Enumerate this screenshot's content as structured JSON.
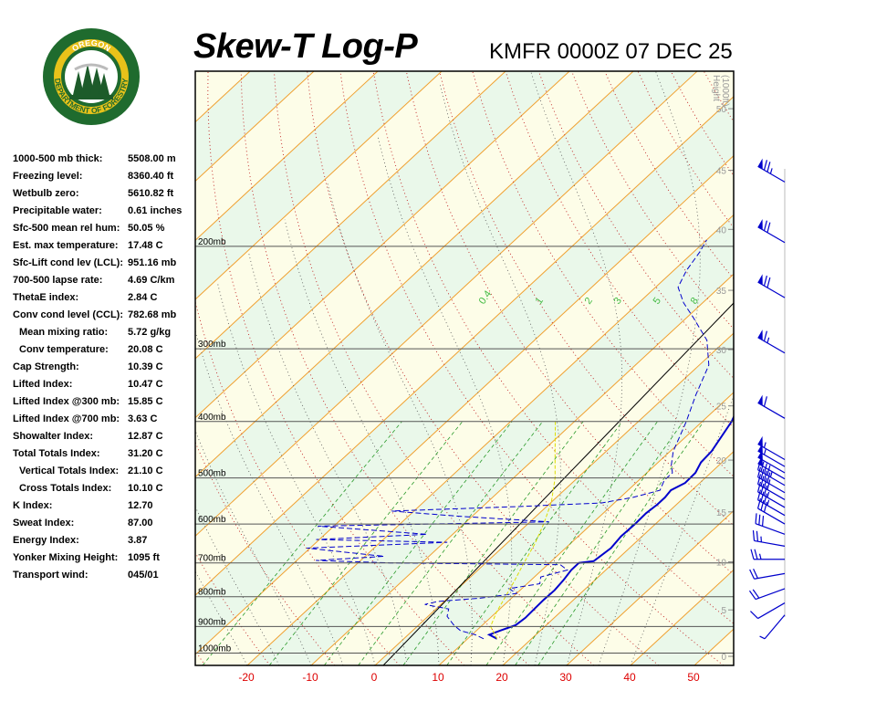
{
  "header": {
    "title": "Skew-T Log-P",
    "station_time": "KMFR 0000Z 07 DEC 25"
  },
  "logo": {
    "top_text": "OREGON",
    "ring_text": "DEPARTMENT OF FORESTRY",
    "colors": {
      "ring": "#1f6b2e",
      "gold": "#e8c21a",
      "tree": "#1d5b2a"
    }
  },
  "indices": [
    {
      "label": "1000-500 mb thick:",
      "value": "5508.00 m",
      "indent": false
    },
    {
      "label": "Freezing level:",
      "value": "8360.40 ft",
      "indent": false
    },
    {
      "label": "Wetbulb zero:",
      "value": "5610.82 ft",
      "indent": false
    },
    {
      "label": "Precipitable water:",
      "value": "0.61 inches",
      "indent": false
    },
    {
      "label": "Sfc-500 mean rel hum:",
      "value": "50.05 %",
      "indent": false
    },
    {
      "label": "Est. max temperature:",
      "value": "17.48 C",
      "indent": false
    },
    {
      "label": "Sfc-Lift cond lev (LCL):",
      "value": "951.16 mb",
      "indent": false
    },
    {
      "label": "700-500 lapse rate:",
      "value": "4.69 C/km",
      "indent": false
    },
    {
      "label": "ThetaE index:",
      "value": "2.84 C",
      "indent": false
    },
    {
      "label": "Conv cond level (CCL):",
      "value": "782.68 mb",
      "indent": false
    },
    {
      "label": "Mean mixing ratio:",
      "value": "5.72 g/kg",
      "indent": true
    },
    {
      "label": "Conv temperature:",
      "value": "20.08 C",
      "indent": true
    },
    {
      "label": "Cap Strength:",
      "value": "10.39 C",
      "indent": false
    },
    {
      "label": "Lifted Index:",
      "value": "10.47 C",
      "indent": false
    },
    {
      "label": "Lifted Index @300 mb:",
      "value": "15.85 C",
      "indent": false
    },
    {
      "label": "Lifted Index @700 mb:",
      "value": "3.63 C",
      "indent": false
    },
    {
      "label": "Showalter Index:",
      "value": "12.87 C",
      "indent": false
    },
    {
      "label": "Total Totals Index:",
      "value": "31.20 C",
      "indent": false
    },
    {
      "label": "Vertical Totals Index:",
      "value": "21.10 C",
      "indent": true
    },
    {
      "label": "Cross Totals Index:",
      "value": "10.10 C",
      "indent": true
    },
    {
      "label": "K Index:",
      "value": "12.70",
      "indent": false
    },
    {
      "label": "Sweat Index:",
      "value": "87.00",
      "indent": false
    },
    {
      "label": "Energy Index:",
      "value": "3.87",
      "indent": false
    },
    {
      "label": "Yonker Mixing Height:",
      "value": "1095 ft",
      "indent": false
    },
    {
      "label": "Transport wind:",
      "value": "045/01",
      "indent": false
    }
  ],
  "chart_data": {
    "type": "line",
    "title": "Skew-T Log-P",
    "xlabel": "",
    "ylabel": "",
    "xlim": [
      -30,
      55
    ],
    "ylim": [
      1050,
      100
    ],
    "x_ticks": [
      "-20",
      "-10",
      "0",
      "10",
      "20",
      "30",
      "40",
      "50"
    ],
    "x_tick_values": [
      -20,
      -10,
      0,
      10,
      20,
      30,
      40,
      50
    ],
    "pressure_levels": [
      {
        "p": 200,
        "label": "200mb"
      },
      {
        "p": 300,
        "label": "300mb"
      },
      {
        "p": 400,
        "label": "400mb"
      },
      {
        "p": 500,
        "label": "500mb"
      },
      {
        "p": 600,
        "label": "600mb"
      },
      {
        "p": 700,
        "label": "700mb"
      },
      {
        "p": 800,
        "label": "800mb"
      },
      {
        "p": 900,
        "label": "900mb"
      },
      {
        "p": 1000,
        "label": "1000mb"
      }
    ],
    "height_axis": {
      "title_lines": [
        "Height",
        "(1000ft)"
      ],
      "ticks": [
        {
          "h": 0,
          "label": "0",
          "p": 1013
        },
        {
          "h": 5,
          "label": "5",
          "p": 843
        },
        {
          "h": 10,
          "label": "10",
          "p": 697
        },
        {
          "h": 15,
          "label": "15",
          "p": 572
        },
        {
          "h": 20,
          "label": "20",
          "p": 466
        },
        {
          "h": 25,
          "label": "25",
          "p": 376
        },
        {
          "h": 30,
          "label": "30",
          "p": 301
        },
        {
          "h": 35,
          "label": "35",
          "p": 238
        },
        {
          "h": 40,
          "label": "40",
          "p": 187
        },
        {
          "h": 45,
          "label": "45",
          "p": 148
        },
        {
          "h": 50,
          "label": "50",
          "p": 116
        }
      ]
    },
    "mixing_ratio_labels": [
      "0.4",
      "1",
      "2",
      "3",
      "5",
      "8"
    ],
    "series": [
      {
        "name": "",
        "kind": "temperature",
        "color": "#0000cc",
        "points": [
          [
            14.6,
            945
          ],
          [
            12.7,
            930
          ],
          [
            13.7,
            915
          ],
          [
            15.2,
            895
          ],
          [
            15.5,
            870
          ],
          [
            15.4,
            840
          ],
          [
            15.3,
            810
          ],
          [
            15.4,
            780
          ],
          [
            15.1,
            750
          ],
          [
            14.6,
            720
          ],
          [
            14.6,
            700
          ],
          [
            16.6,
            695
          ],
          [
            17.1,
            660
          ],
          [
            16.7,
            630
          ],
          [
            16.8,
            600
          ],
          [
            16.7,
            575
          ],
          [
            17.0,
            555
          ],
          [
            17.0,
            540
          ],
          [
            16.7,
            525
          ],
          [
            17.7,
            510
          ],
          [
            17.6,
            490
          ],
          [
            16.7,
            470
          ],
          [
            16.5,
            450
          ],
          [
            14.6,
            400
          ],
          [
            12.7,
            370
          ],
          [
            10.4,
            340
          ],
          [
            8.4,
            310
          ],
          [
            6.5,
            285
          ],
          [
            4.5,
            260
          ],
          [
            2.8,
            240
          ],
          [
            1.6,
            225
          ],
          [
            0.8,
            213
          ],
          [
            0.6,
            202
          ],
          [
            0.5,
            190
          ]
        ]
      },
      {
        "name": "",
        "kind": "dewpoint",
        "color": "#0000cc",
        "points": [
          [
            12.5,
            945
          ],
          [
            10.5,
            930
          ],
          [
            7.5,
            915
          ],
          [
            5.5,
            895
          ],
          [
            3.0,
            865
          ],
          [
            2.0,
            840
          ],
          [
            -2.5,
            825
          ],
          [
            -1.0,
            815
          ],
          [
            5.0,
            805
          ],
          [
            10.0,
            790
          ],
          [
            8.0,
            775
          ],
          [
            12.0,
            760
          ],
          [
            11.0,
            740
          ],
          [
            14.0,
            720
          ],
          [
            12.0,
            705
          ],
          [
            -15.0,
            700
          ],
          [
            -27.0,
            693
          ],
          [
            -17.0,
            682
          ],
          [
            -30.5,
            660
          ],
          [
            -9.5,
            645
          ],
          [
            -30.5,
            638
          ],
          [
            -14.0,
            625
          ],
          [
            -32.5,
            605
          ],
          [
            3.0,
            595
          ],
          [
            -12.0,
            582
          ],
          [
            -23.5,
            570
          ],
          [
            -4.5,
            560
          ],
          [
            8.0,
            552
          ],
          [
            12.0,
            540
          ],
          [
            15.0,
            525
          ],
          [
            14.0,
            505
          ],
          [
            14.0,
            490
          ],
          [
            12.5,
            475
          ],
          [
            10.5,
            450
          ],
          [
            7.5,
            400
          ],
          [
            4.5,
            360
          ],
          [
            1.5,
            320
          ],
          [
            -3.0,
            290
          ],
          [
            -9.0,
            265
          ],
          [
            -13.0,
            250
          ],
          [
            -16.5,
            235
          ],
          [
            -18.0,
            220
          ],
          [
            -19.0,
            205
          ],
          [
            -20.0,
            195
          ]
        ]
      },
      {
        "name": "",
        "kind": "parcel",
        "color": "#dddd00",
        "points": [
          [
            14.6,
            945
          ],
          [
            11.5,
            900
          ],
          [
            10.0,
            850
          ],
          [
            8.8,
            800
          ],
          [
            7.5,
            750
          ],
          [
            6.0,
            700
          ],
          [
            4.5,
            650
          ],
          [
            2.5,
            600
          ],
          [
            0.0,
            550
          ],
          [
            -3.5,
            500
          ],
          [
            -8.0,
            450
          ],
          [
            -13.0,
            400
          ]
        ]
      }
    ],
    "wind_barbs": [
      {
        "p": 155,
        "dir": 300,
        "spd": 75
      },
      {
        "p": 197,
        "dir": 300,
        "spd": 70
      },
      {
        "p": 245,
        "dir": 300,
        "spd": 70
      },
      {
        "p": 305,
        "dir": 300,
        "spd": 65
      },
      {
        "p": 395,
        "dir": 300,
        "spd": 60
      },
      {
        "p": 465,
        "dir": 300,
        "spd": 55
      },
      {
        "p": 478,
        "dir": 300,
        "spd": 55
      },
      {
        "p": 490,
        "dir": 300,
        "spd": 50
      },
      {
        "p": 502,
        "dir": 300,
        "spd": 50
      },
      {
        "p": 515,
        "dir": 300,
        "spd": 45
      },
      {
        "p": 530,
        "dir": 300,
        "spd": 40
      },
      {
        "p": 545,
        "dir": 300,
        "spd": 40
      },
      {
        "p": 562,
        "dir": 300,
        "spd": 35
      },
      {
        "p": 580,
        "dir": 300,
        "spd": 35
      },
      {
        "p": 600,
        "dir": 300,
        "spd": 30
      },
      {
        "p": 625,
        "dir": 290,
        "spd": 30
      },
      {
        "p": 655,
        "dir": 280,
        "spd": 25
      },
      {
        "p": 690,
        "dir": 270,
        "spd": 25
      },
      {
        "p": 730,
        "dir": 260,
        "spd": 20
      },
      {
        "p": 775,
        "dir": 250,
        "spd": 20
      },
      {
        "p": 820,
        "dir": 240,
        "spd": 10
      },
      {
        "p": 860,
        "dir": 220,
        "spd": 5
      }
    ],
    "grid": true,
    "legend": "none"
  }
}
